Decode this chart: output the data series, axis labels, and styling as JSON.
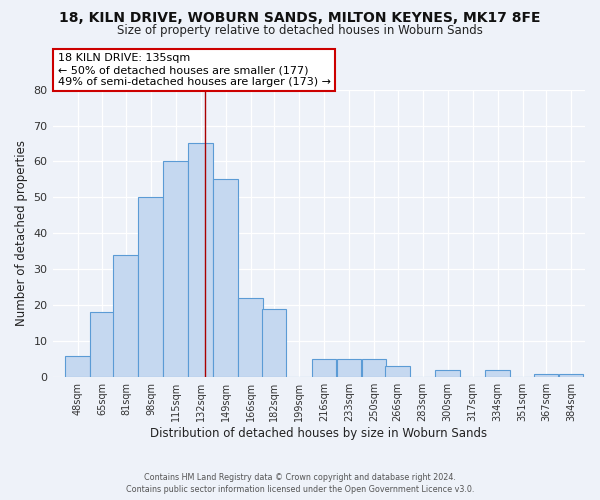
{
  "title": "18, KILN DRIVE, WOBURN SANDS, MILTON KEYNES, MK17 8FE",
  "subtitle": "Size of property relative to detached houses in Woburn Sands",
  "xlabel": "Distribution of detached houses by size in Woburn Sands",
  "ylabel": "Number of detached properties",
  "bar_color": "#c5d8f0",
  "bar_edge_color": "#5b9bd5",
  "bin_labels": [
    "48sqm",
    "65sqm",
    "81sqm",
    "98sqm",
    "115sqm",
    "132sqm",
    "149sqm",
    "166sqm",
    "182sqm",
    "199sqm",
    "216sqm",
    "233sqm",
    "250sqm",
    "266sqm",
    "283sqm",
    "300sqm",
    "317sqm",
    "334sqm",
    "351sqm",
    "367sqm",
    "384sqm"
  ],
  "bin_values": [
    6,
    18,
    34,
    50,
    60,
    65,
    55,
    22,
    19,
    0,
    5,
    5,
    5,
    3,
    0,
    2,
    0,
    2,
    0,
    1,
    1
  ],
  "ylim": [
    0,
    80
  ],
  "yticks": [
    0,
    10,
    20,
    30,
    40,
    50,
    60,
    70,
    80
  ],
  "property_line_x": 135,
  "property_line_label": "18 KILN DRIVE: 135sqm",
  "annotation_line1": "← 50% of detached houses are smaller (177)",
  "annotation_line2": "49% of semi-detached houses are larger (173) →",
  "annotation_box_color": "#ffffff",
  "annotation_box_edge_color": "#cc0000",
  "footer_line1": "Contains HM Land Registry data © Crown copyright and database right 2024.",
  "footer_line2": "Contains public sector information licensed under the Open Government Licence v3.0.",
  "background_color": "#eef2f9",
  "grid_color": "#ffffff",
  "bin_width": 17
}
